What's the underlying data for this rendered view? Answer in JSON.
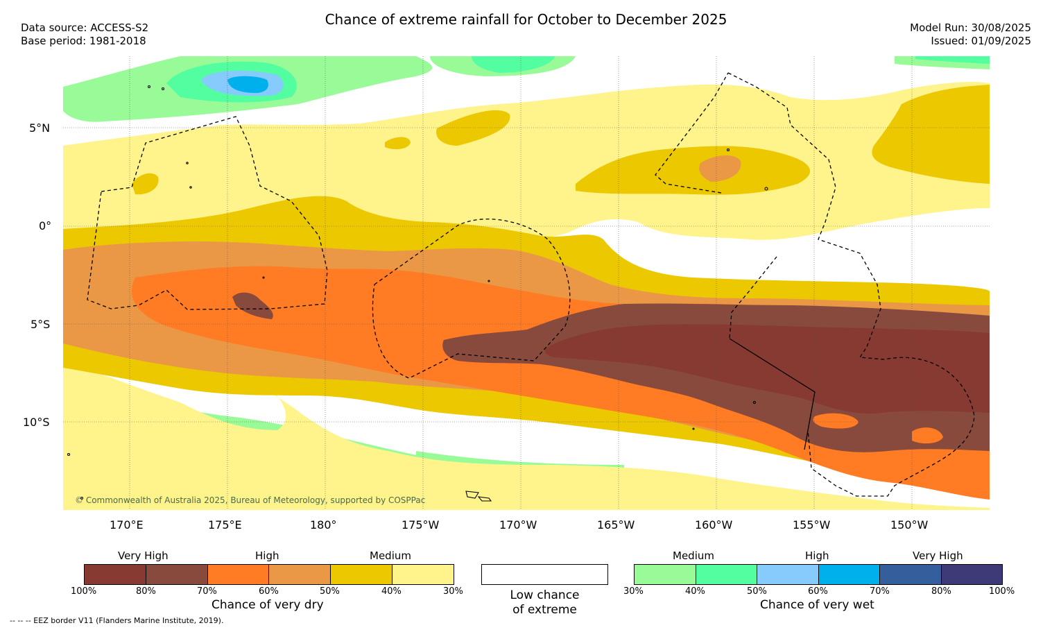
{
  "header": {
    "title": "Chance of extreme rainfall for October to December 2025",
    "data_source": "Data source: ACCESS-S2",
    "base_period": "Base period: 1981-2018",
    "model_run": "Model Run: 30/08/2025",
    "issued": "Issued: 01/09/2025"
  },
  "map": {
    "lat_labels": [
      "5°N",
      "0°",
      "5°S",
      "10°S"
    ],
    "lon_labels": [
      "170°E",
      "175°E",
      "180°",
      "175°W",
      "170°W",
      "165°W",
      "160°W",
      "155°W",
      "150°W"
    ],
    "copyright": "© Commonwealth of Australia 2025, Bureau of Meteorology, supported by COSPPac"
  },
  "colors": {
    "dry_100_80": "#873a32",
    "dry_80_70": "#874a3c",
    "dry_70_60": "#ff7c24",
    "dry_60_50": "#ea9846",
    "dry_50_40": "#ecc800",
    "dry_40_30": "#fff48c",
    "wet_30_40": "#98fb98",
    "wet_40_50": "#52fea0",
    "wet_50_60": "#86cbfc",
    "wet_60_70": "#00b0ec",
    "wet_70_80": "#355f9c",
    "wet_80_100": "#3e3a78",
    "low": "#ffffff"
  },
  "legend": {
    "dry": {
      "headings": [
        "Very High",
        "High",
        "Medium"
      ],
      "ticks": [
        "100%",
        "80%",
        "70%",
        "60%",
        "50%",
        "40%",
        "30%"
      ],
      "title": "Chance of very dry"
    },
    "low": {
      "line1": "Low chance",
      "line2": "of extreme"
    },
    "wet": {
      "headings": [
        "Medium",
        "High",
        "Very High"
      ],
      "ticks": [
        "30%",
        "40%",
        "50%",
        "60%",
        "70%",
        "80%",
        "100%"
      ],
      "title": "Chance of very wet"
    }
  },
  "footnote": "--  --  -- EEZ border V11 (Flanders Marine Institute, 2019)."
}
